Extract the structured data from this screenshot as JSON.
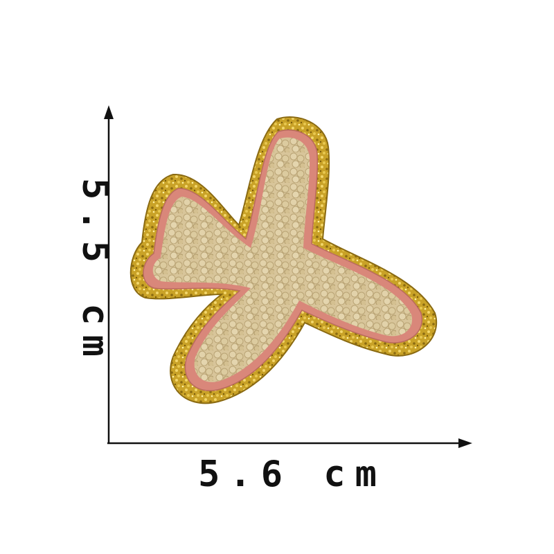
{
  "dimensions": {
    "width_label": "5.6 cm",
    "height_label": "5.5 cm"
  },
  "product": {
    "shape": "airplane",
    "colors": {
      "border_gold": "#c9a227",
      "border_gold_dark": "#8a6a12",
      "border_gold_light": "#f2d66b",
      "outline_pink": "#d9877a",
      "fill_beige": "#d8c59a",
      "fill_beige_shadow": "#b9a374",
      "arrow": "#111111"
    }
  }
}
